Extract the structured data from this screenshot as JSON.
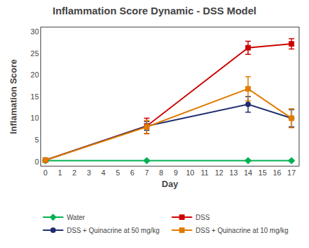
{
  "chart_data": {
    "type": "line",
    "title": "Inflammation Score Dynamic - DSS Model",
    "xlabel": "Day",
    "ylabel": "Inflamation Score",
    "x": [
      0,
      7,
      14,
      17
    ],
    "xlim": [
      -0.3,
      17.5
    ],
    "ylim": [
      -1,
      31
    ],
    "xticks": [
      0,
      1,
      2,
      3,
      4,
      5,
      6,
      7,
      8,
      9,
      10,
      11,
      12,
      13,
      14,
      15,
      16,
      17
    ],
    "yticks": [
      0,
      5,
      10,
      15,
      20,
      25,
      30
    ],
    "grid": false,
    "legend": "bottom",
    "series": [
      {
        "name": "Water",
        "color": "#00b050",
        "marker": "diamond",
        "values": [
          0.2,
          0.2,
          0.2,
          0.2
        ],
        "yerr": [
          0.15,
          0.15,
          0.15,
          0.15
        ]
      },
      {
        "name": "DSS",
        "color": "#cc0000",
        "marker": "square",
        "values": [
          0.3,
          8.2,
          26.3,
          27.2
        ],
        "yerr": [
          0.2,
          1.8,
          1.5,
          1.2
        ]
      },
      {
        "name": "DSS + Quinacrine at 50 mg/kg",
        "color": "#1f2d6e",
        "marker": "circle",
        "values": [
          0.3,
          8.2,
          13.2,
          10.0
        ],
        "yerr": [
          0.2,
          1.0,
          1.8,
          2.0
        ]
      },
      {
        "name": "DSS + Quinacrine at 10 mg/kg",
        "color": "#e07b00",
        "marker": "square",
        "values": [
          0.3,
          8.0,
          16.8,
          10.0
        ],
        "yerr": [
          0.2,
          1.5,
          2.8,
          2.2
        ]
      }
    ]
  }
}
